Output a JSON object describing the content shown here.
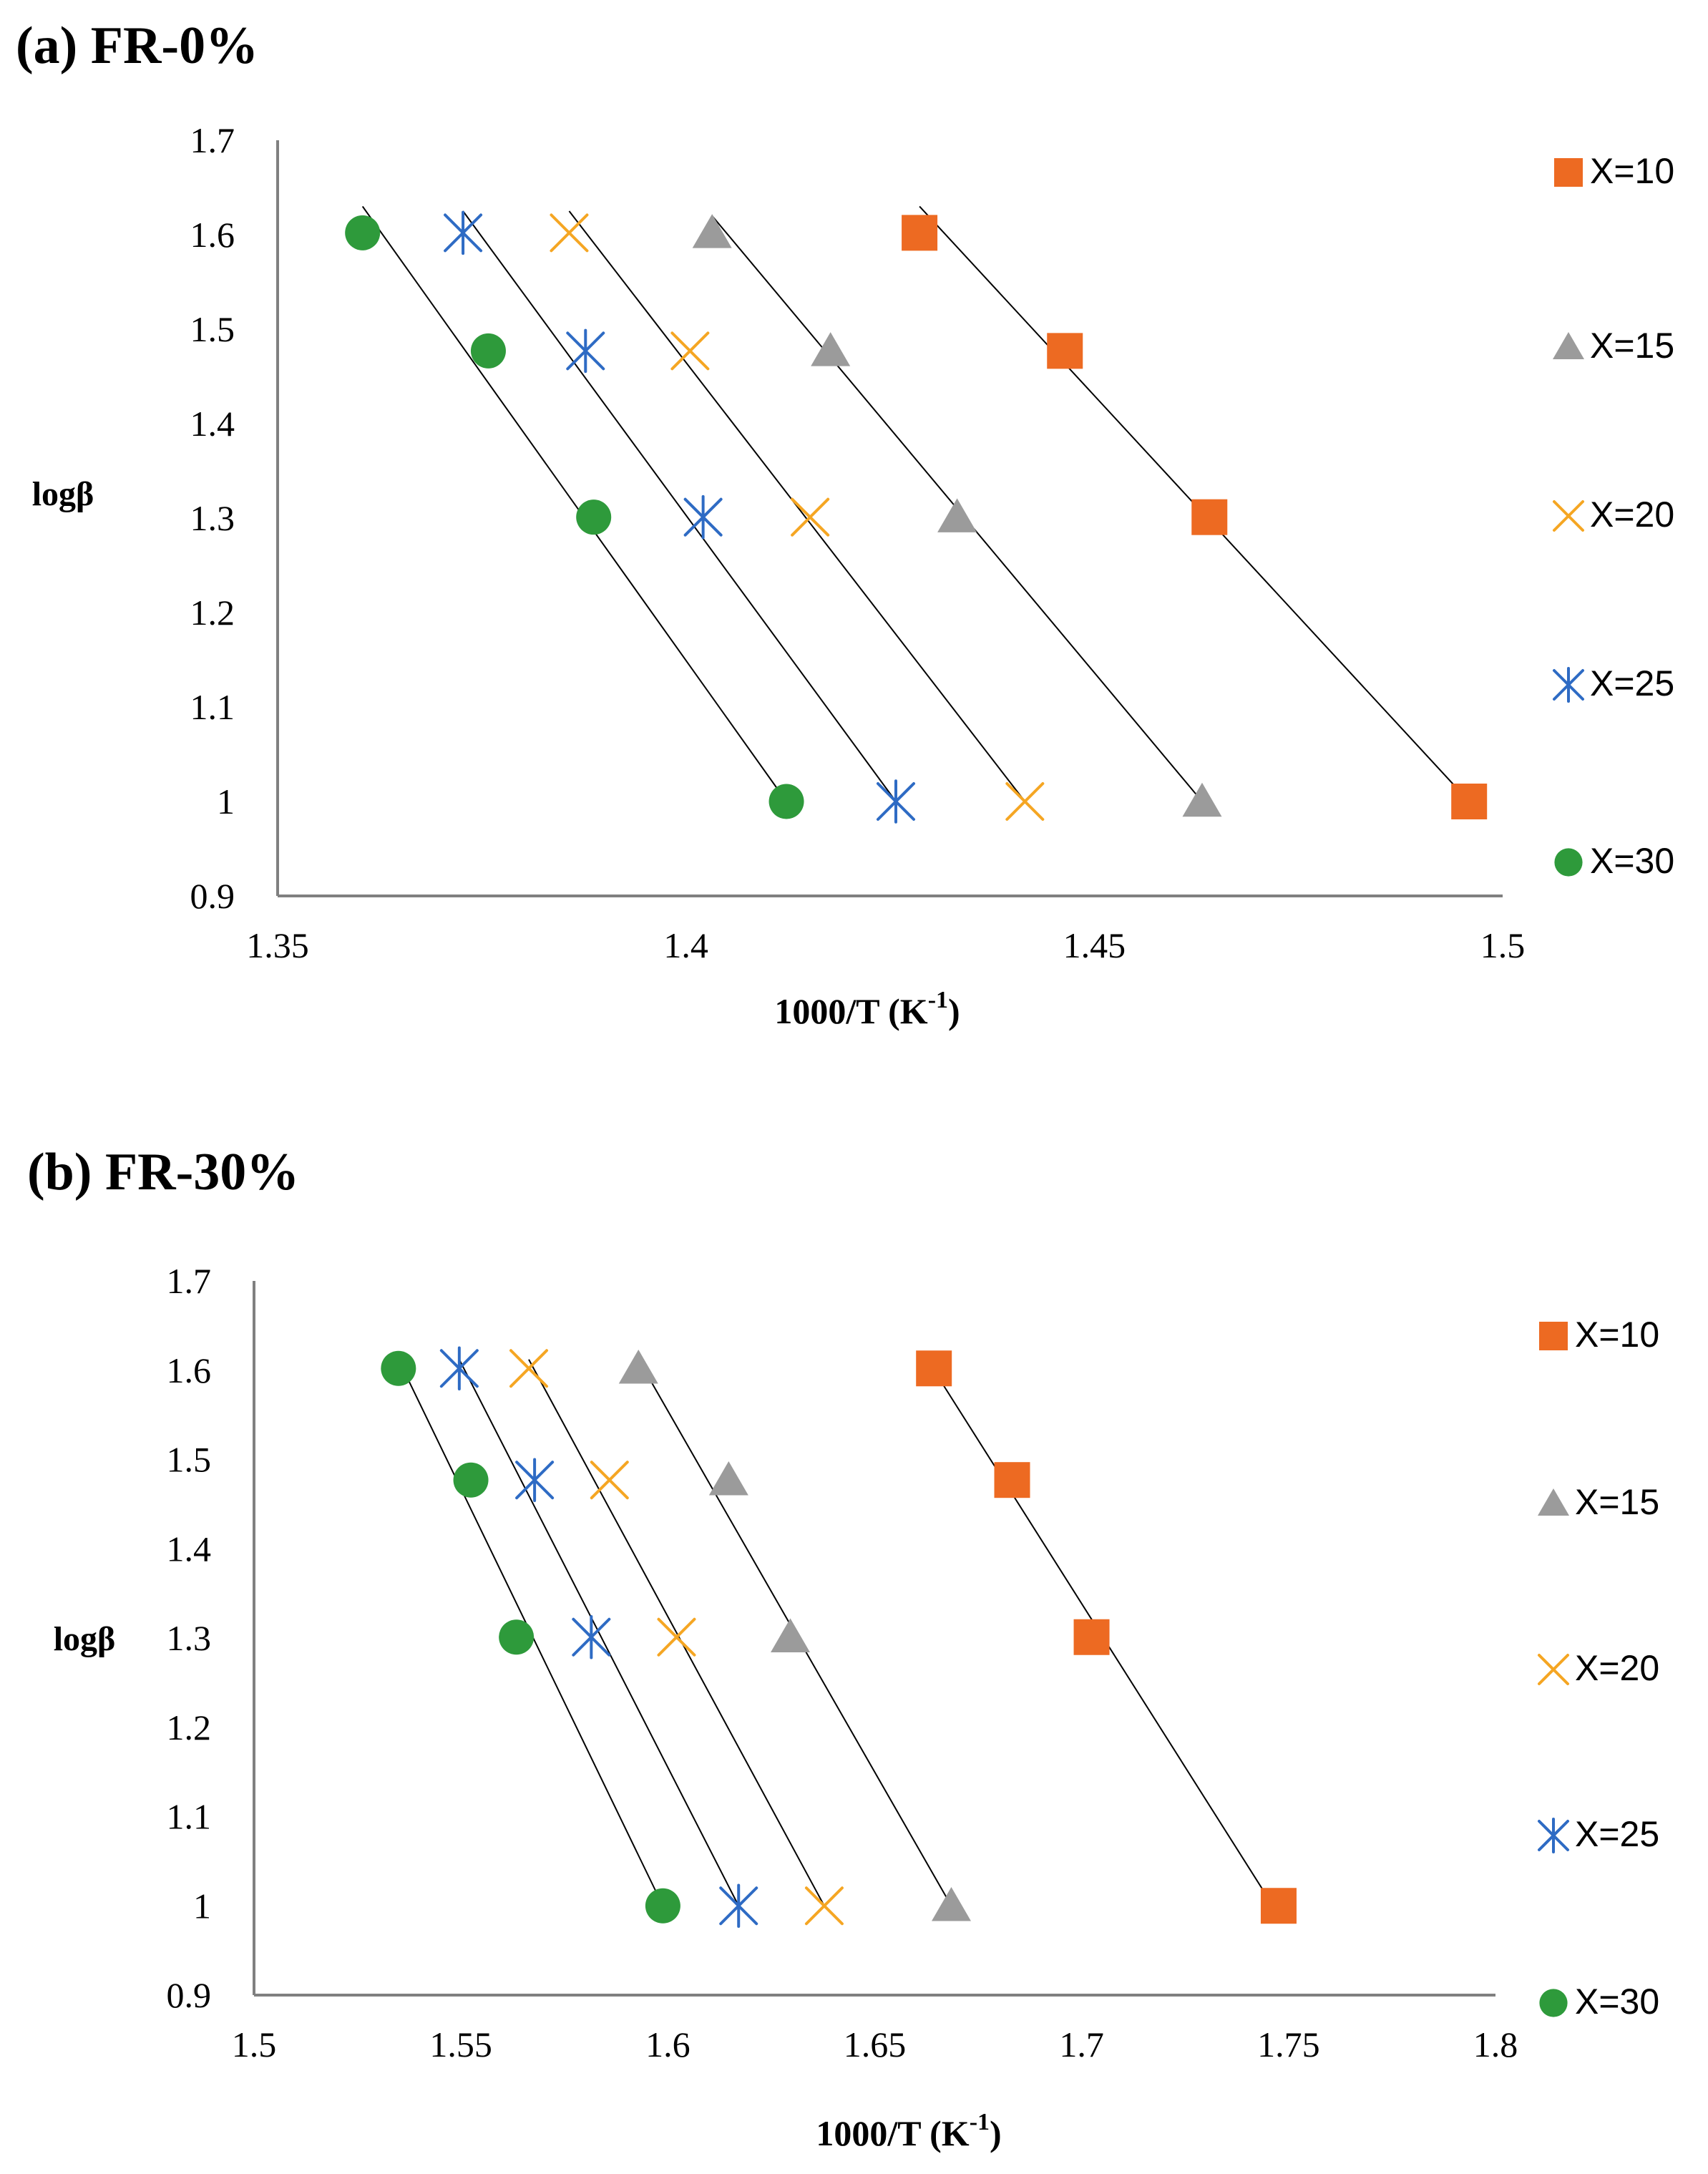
{
  "colors": {
    "x10": "#ED6A22",
    "x15": "#9B9B9B",
    "x20": "#F5A623",
    "x25": "#2E6BC4",
    "x30": "#2E9A3B",
    "axis": "#808080",
    "fit_line": "#000000"
  },
  "chart_data": [
    {
      "type": "scatter",
      "title": "(a) FR-0%",
      "xlabel": "1000/T  (K",
      "xlabel_sup": "-1",
      "xlabel_close": ")",
      "ylabel": "logβ",
      "xlim": [
        1.35,
        1.5
      ],
      "ylim": [
        0.9,
        1.7
      ],
      "xticks": [
        "1.35",
        "1.4",
        "1.45",
        "1.5"
      ],
      "yticks": [
        "0.9",
        "1",
        "1.1",
        "1.2",
        "1.3",
        "1.4",
        "1.5",
        "1.6",
        "1.7"
      ],
      "legend_position": "right",
      "series": [
        {
          "name": "X=10",
          "marker": "square",
          "color_key": "x10",
          "x": [
            1.4286,
            1.4464,
            1.4641,
            1.4959
          ],
          "y": [
            1.602,
            1.477,
            1.301,
            1.0
          ],
          "fit": [
            [
              1.4286,
              1.63
            ],
            [
              1.4959,
              1.0
            ]
          ]
        },
        {
          "name": "X=15",
          "marker": "triangle",
          "color_key": "x15",
          "x": [
            1.4032,
            1.4177,
            1.4332,
            1.4632
          ],
          "y": [
            1.602,
            1.477,
            1.301,
            1.0
          ],
          "fit": [
            [
              1.4032,
              1.62
            ],
            [
              1.4632,
              1.0
            ]
          ]
        },
        {
          "name": "X=20",
          "marker": "x",
          "color_key": "x20",
          "x": [
            1.3857,
            1.4005,
            1.4152,
            1.4415
          ],
          "y": [
            1.602,
            1.477,
            1.301,
            1.0
          ],
          "fit": [
            [
              1.3857,
              1.625
            ],
            [
              1.4415,
              1.0
            ]
          ]
        },
        {
          "name": "X=25",
          "marker": "asterisk",
          "color_key": "x25",
          "x": [
            1.3727,
            1.3877,
            1.4021,
            1.4257
          ],
          "y": [
            1.602,
            1.477,
            1.301,
            1.0
          ],
          "fit": [
            [
              1.3727,
              1.625
            ],
            [
              1.4257,
              1.0
            ]
          ]
        },
        {
          "name": "X=30",
          "marker": "circle",
          "color_key": "x30",
          "x": [
            1.3604,
            1.3758,
            1.3887,
            1.4123
          ],
          "y": [
            1.602,
            1.477,
            1.301,
            1.0
          ],
          "fit": [
            [
              1.3604,
              1.63
            ],
            [
              1.4123,
              1.0
            ]
          ]
        }
      ]
    },
    {
      "type": "scatter",
      "title": "(b) FR-30%",
      "xlabel": "1000/T  (K",
      "xlabel_sup": "-1",
      "xlabel_close": ")",
      "ylabel": "logβ",
      "xlim": [
        1.5,
        1.8
      ],
      "ylim": [
        0.9,
        1.7
      ],
      "xticks": [
        "1.5",
        "1.55",
        "1.6",
        "1.65",
        "1.7",
        "1.75",
        "1.8"
      ],
      "yticks": [
        "0.9",
        "1",
        "1.1",
        "1.2",
        "1.3",
        "1.4",
        "1.5",
        "1.6",
        "1.7"
      ],
      "legend_position": "right",
      "series": [
        {
          "name": "X=10",
          "marker": "square",
          "color_key": "x10",
          "x": [
            1.6643,
            1.6832,
            1.7024,
            1.7476
          ],
          "y": [
            1.602,
            1.477,
            1.301,
            1.0
          ],
          "fit": [
            [
              1.6643,
              1.6
            ],
            [
              1.7476,
              0.99
            ]
          ]
        },
        {
          "name": "X=15",
          "marker": "triangle",
          "color_key": "x15",
          "x": [
            1.5929,
            1.6147,
            1.6296,
            1.6685
          ],
          "y": [
            1.602,
            1.477,
            1.301,
            1.0
          ],
          "fit": [
            [
              1.5929,
              1.612
            ],
            [
              1.6685,
              1.0
            ]
          ]
        },
        {
          "name": "X=20",
          "marker": "x",
          "color_key": "x20",
          "x": [
            1.5664,
            1.5859,
            1.6021,
            1.6378
          ],
          "y": [
            1.602,
            1.477,
            1.301,
            1.0
          ],
          "fit": [
            [
              1.5664,
              1.612
            ],
            [
              1.6378,
              1.0
            ]
          ]
        },
        {
          "name": "X=25",
          "marker": "asterisk",
          "color_key": "x25",
          "x": [
            1.5496,
            1.5678,
            1.5815,
            1.6171
          ],
          "y": [
            1.602,
            1.477,
            1.301,
            1.0
          ],
          "fit": [
            [
              1.5496,
              1.612
            ],
            [
              1.6171,
              1.0
            ]
          ]
        },
        {
          "name": "X=30",
          "marker": "circle",
          "color_key": "x30",
          "x": [
            1.5349,
            1.5524,
            1.5634,
            1.5988
          ],
          "y": [
            1.602,
            1.477,
            1.301,
            1.0
          ],
          "fit": [
            [
              1.5349,
              1.612
            ],
            [
              1.5988,
              1.0
            ]
          ]
        }
      ]
    }
  ]
}
